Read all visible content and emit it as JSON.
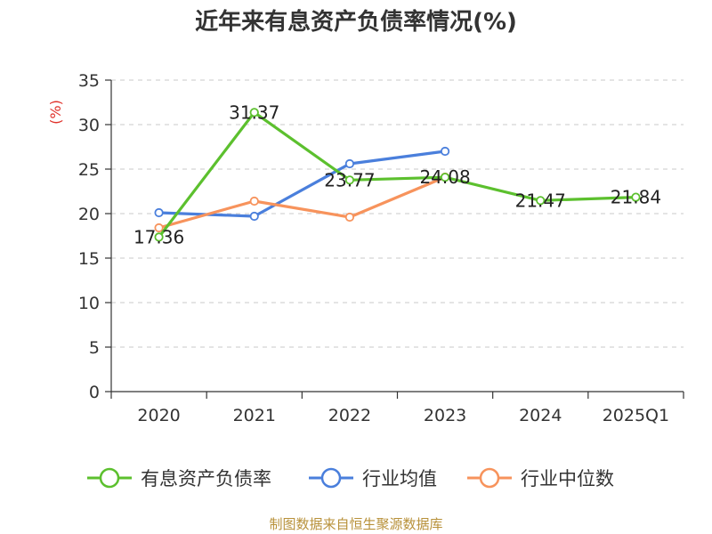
{
  "chart_data": {
    "type": "line",
    "title": "近年来有息资产负债率情况(%)",
    "ylabel": "(%)",
    "categories": [
      "2020",
      "2021",
      "2022",
      "2023",
      "2024",
      "2025Q1"
    ],
    "ylim": [
      0,
      35
    ],
    "yticks": [
      0,
      5,
      10,
      15,
      20,
      25,
      30,
      35
    ],
    "grid": true,
    "legend_position": "bottom",
    "series": [
      {
        "name": "有息资产负债率",
        "color": "#5cc02e",
        "values": [
          17.36,
          31.37,
          23.77,
          24.08,
          21.47,
          21.84
        ],
        "labels": [
          "17.36",
          "31.37",
          "23.77",
          "24.08",
          "21.47",
          "21.84"
        ]
      },
      {
        "name": "行业均值",
        "color": "#4a7fdc",
        "values": [
          20.1,
          19.7,
          25.6,
          27.0,
          null,
          null
        ]
      },
      {
        "name": "行业中位数",
        "color": "#f7935c",
        "values": [
          18.4,
          21.4,
          19.6,
          24.1,
          null,
          null
        ]
      }
    ]
  },
  "source": "制图数据来自恒生聚源数据库"
}
